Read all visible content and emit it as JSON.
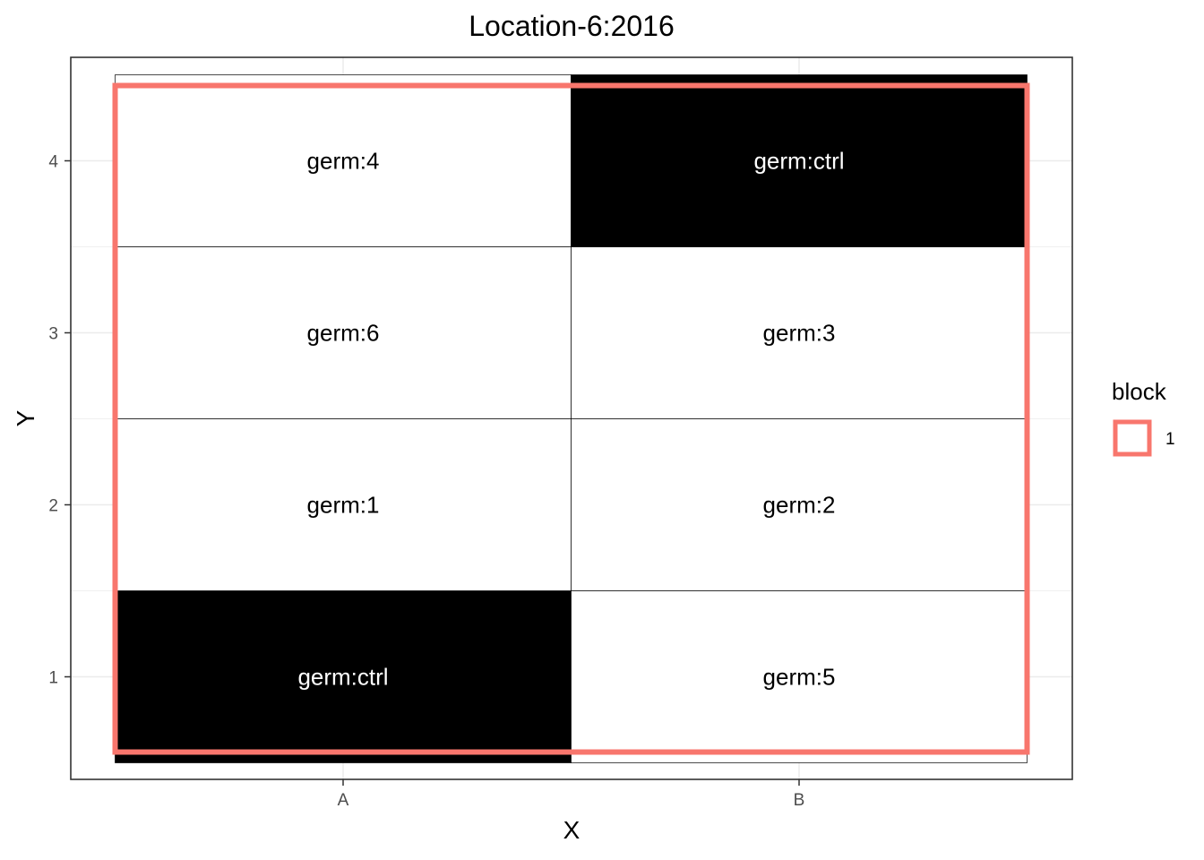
{
  "chart_data": {
    "type": "heatmap",
    "title": "Location-6:2016",
    "xlabel": "X",
    "ylabel": "Y",
    "x_categories": [
      "A",
      "B"
    ],
    "y_ticks": [
      1,
      2,
      3,
      4
    ],
    "ylim": [
      0.5,
      4.5
    ],
    "grid": true,
    "cells": [
      {
        "x": "A",
        "y": 1,
        "label": "germ:ctrl",
        "fill": "#000000",
        "text_color": "#ffffff"
      },
      {
        "x": "A",
        "y": 2,
        "label": "germ:1",
        "fill": "#ffffff",
        "text_color": "#000000"
      },
      {
        "x": "A",
        "y": 3,
        "label": "germ:6",
        "fill": "#ffffff",
        "text_color": "#000000"
      },
      {
        "x": "A",
        "y": 4,
        "label": "germ:4",
        "fill": "#ffffff",
        "text_color": "#000000"
      },
      {
        "x": "B",
        "y": 1,
        "label": "germ:5",
        "fill": "#ffffff",
        "text_color": "#000000"
      },
      {
        "x": "B",
        "y": 2,
        "label": "germ:2",
        "fill": "#ffffff",
        "text_color": "#000000"
      },
      {
        "x": "B",
        "y": 3,
        "label": "germ:3",
        "fill": "#ffffff",
        "text_color": "#000000"
      },
      {
        "x": "B",
        "y": 4,
        "label": "germ:ctrl",
        "fill": "#000000",
        "text_color": "#ffffff"
      }
    ],
    "blocks": [
      {
        "name": "1",
        "x_range": [
          "A",
          "B"
        ],
        "y_range": [
          1,
          4
        ],
        "color": "#F8766D"
      }
    ],
    "legend": {
      "title": "block",
      "placement": "right",
      "items": [
        {
          "label": "1",
          "color": "#F8766D"
        }
      ]
    }
  }
}
